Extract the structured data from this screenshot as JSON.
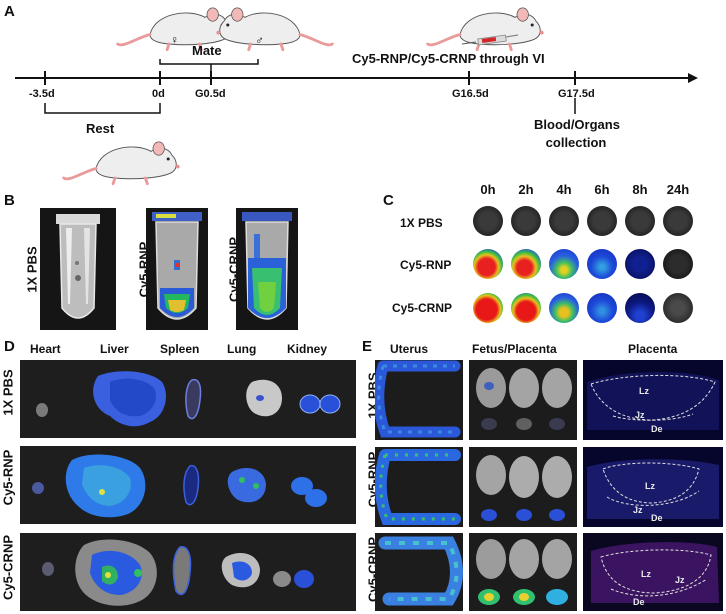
{
  "panels": {
    "a": "A",
    "b": "B",
    "c": "C",
    "d": "D",
    "e": "E"
  },
  "panel_a": {
    "mate": "Mate",
    "female_symbol": "♀",
    "male_symbol": "♂",
    "injection": "Cy5-RNP/Cy5-CRNP through VI",
    "rest": "Rest",
    "collection_line1": "Blood/Organs",
    "collection_line2": "collection",
    "ticks": [
      "-3.5d",
      "0d",
      "G0.5d",
      "G16.5d",
      "G17.5d"
    ]
  },
  "panel_b": {
    "tubes": [
      "1X PBS",
      "Cy5-RNP",
      "Cy5-CRNP"
    ]
  },
  "panel_c": {
    "timepoints": [
      "0h",
      "2h",
      "4h",
      "6h",
      "8h",
      "24h"
    ],
    "rows": [
      "1X PBS",
      "Cy5-RNP",
      "Cy5-CRNP"
    ]
  },
  "panel_d": {
    "organs": [
      "Heart",
      "Liver",
      "Spleen",
      "Lung",
      "Kidney"
    ],
    "rows": [
      "1X PBS",
      "Cy5-RNP",
      "Cy5-CRNP"
    ]
  },
  "panel_e": {
    "columns": [
      "Uterus",
      "Fetus/Placenta",
      "Placenta"
    ],
    "rows": [
      "1X PBS",
      "Cy5-RNP",
      "Cy5-CRNP"
    ],
    "zones": {
      "lz": "Lz",
      "jz": "Jz",
      "de": "De"
    }
  }
}
